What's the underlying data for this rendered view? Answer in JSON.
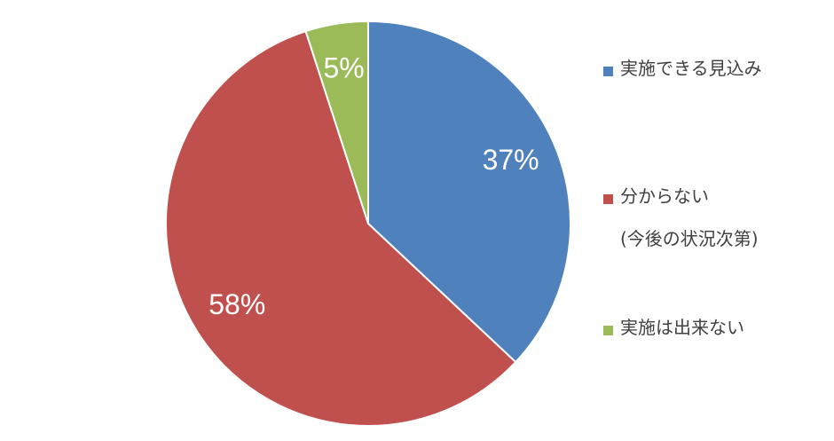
{
  "chart_data": {
    "type": "pie",
    "series": [
      {
        "name": "実施できる見込み",
        "color": "#4f81bd",
        "values": [
          37
        ],
        "value_labels": [
          "37%"
        ]
      },
      {
        "name": "分からない\n(今後の状況次第)",
        "color": "#c0504d",
        "values": [
          58
        ],
        "value_labels": [
          "58%"
        ]
      },
      {
        "name": "実施は出来ない",
        "color": "#9bbb59",
        "values": [
          5
        ],
        "value_labels": [
          "5%"
        ]
      }
    ]
  }
}
